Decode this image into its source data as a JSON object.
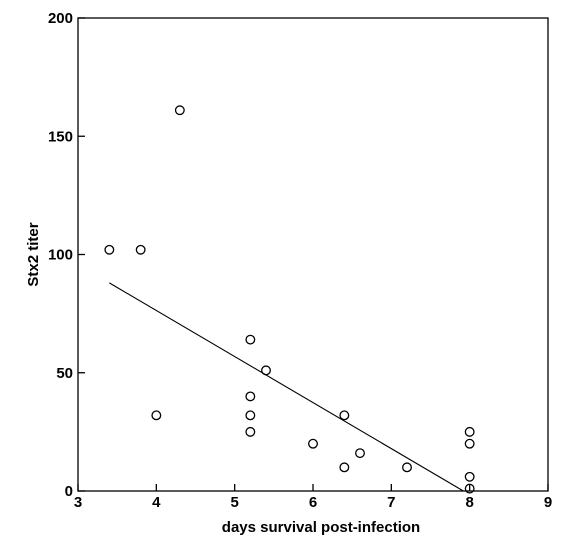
{
  "chart_data": {
    "type": "scatter",
    "xlabel": "days survival post-infection",
    "ylabel": "Stx2 titer",
    "xlim": [
      3,
      9
    ],
    "ylim": [
      0,
      200
    ],
    "xticks": [
      3,
      4,
      5,
      6,
      7,
      8,
      9
    ],
    "yticks": [
      0,
      50,
      100,
      150,
      200
    ],
    "grid": false,
    "box": true,
    "series": [
      {
        "points": [
          {
            "x": 3.4,
            "y": 102
          },
          {
            "x": 3.8,
            "y": 102
          },
          {
            "x": 4.0,
            "y": 32
          },
          {
            "x": 4.3,
            "y": 161
          },
          {
            "x": 5.2,
            "y": 64
          },
          {
            "x": 5.2,
            "y": 40
          },
          {
            "x": 5.2,
            "y": 32
          },
          {
            "x": 5.2,
            "y": 25
          },
          {
            "x": 5.4,
            "y": 51
          },
          {
            "x": 6.0,
            "y": 20
          },
          {
            "x": 6.4,
            "y": 32
          },
          {
            "x": 6.4,
            "y": 10
          },
          {
            "x": 6.6,
            "y": 16
          },
          {
            "x": 7.2,
            "y": 10
          },
          {
            "x": 8.0,
            "y": 25
          },
          {
            "x": 8.0,
            "y": 20
          },
          {
            "x": 8.0,
            "y": 6
          },
          {
            "x": 8.0,
            "y": 1
          }
        ]
      }
    ],
    "fit_line": {
      "x": [
        3.4,
        7.92
      ],
      "y": [
        88,
        0
      ]
    }
  }
}
